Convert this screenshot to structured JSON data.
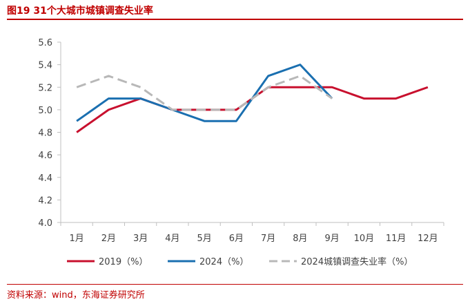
{
  "figure": {
    "title": "图19  31个大城市城镇调查失业率",
    "source": "资料来源：wind，东海证券研究所"
  },
  "chart_data": {
    "type": "line",
    "title": "31个大城市城镇调查失业率",
    "xlabel": "",
    "ylabel": "",
    "categories": [
      "1月",
      "2月",
      "3月",
      "4月",
      "5月",
      "6月",
      "7月",
      "8月",
      "9月",
      "10月",
      "11月",
      "12月"
    ],
    "ylim": [
      4.0,
      5.6
    ],
    "yticks": [
      "4.0",
      "4.2",
      "4.4",
      "4.6",
      "4.8",
      "5.0",
      "5.2",
      "5.4",
      "5.6"
    ],
    "grid": false,
    "legend_position": "bottom",
    "series": [
      {
        "name": "2019（%）",
        "color": "#c8102e",
        "style": "solid",
        "values": [
          4.8,
          5.0,
          5.1,
          5.0,
          5.0,
          5.0,
          5.2,
          5.2,
          5.2,
          5.1,
          5.1,
          5.2
        ]
      },
      {
        "name": "2024（%）",
        "color": "#1a6fb0",
        "style": "solid",
        "values": [
          4.9,
          5.1,
          5.1,
          5.0,
          4.9,
          4.9,
          5.3,
          5.4,
          5.1,
          null,
          null,
          null
        ]
      },
      {
        "name": "2024城镇调查失业率（%）",
        "color": "#b8b8b8",
        "style": "dashed",
        "values": [
          5.2,
          5.3,
          5.2,
          5.0,
          5.0,
          5.0,
          5.2,
          5.3,
          5.1,
          null,
          null,
          null
        ]
      }
    ]
  }
}
